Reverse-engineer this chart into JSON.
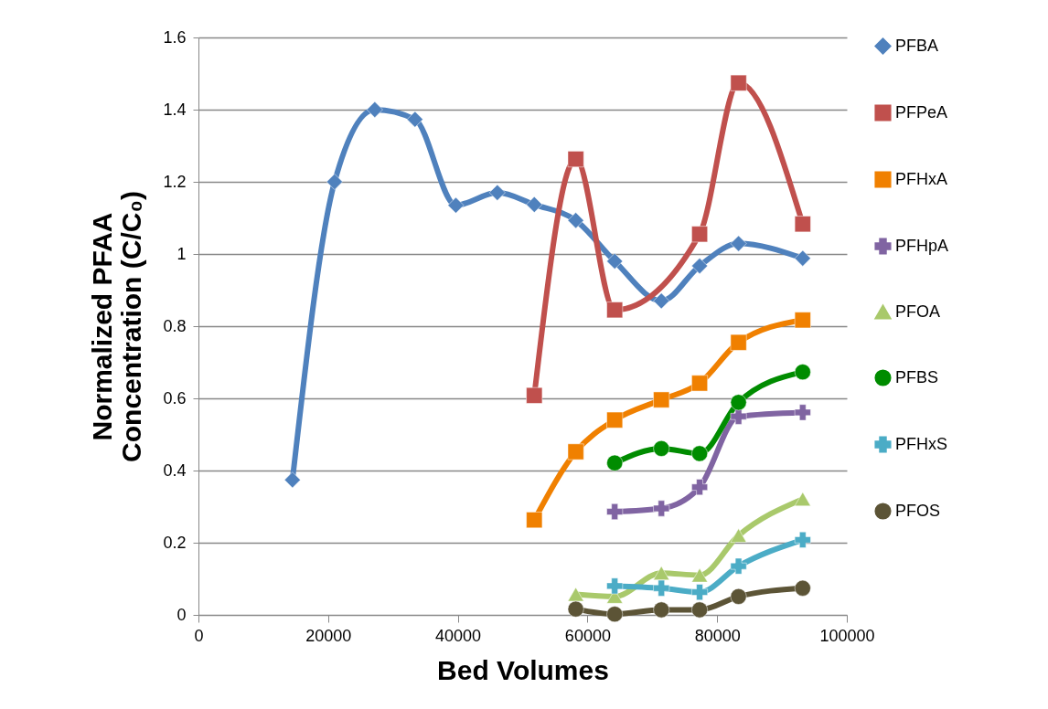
{
  "chart_data": {
    "type": "line",
    "xlabel": "Bed Volumes",
    "ylabel": "Normalized PFAA Concentration (C/C₀)",
    "xlim": [
      0,
      100000
    ],
    "xticks": [
      0,
      20000,
      40000,
      60000,
      80000,
      100000
    ],
    "ylim": [
      0,
      1.6
    ],
    "yticks": [
      0,
      0.2,
      0.4,
      0.6,
      0.8,
      1,
      1.2,
      1.4,
      1.6
    ],
    "grid": "y",
    "legend": "right",
    "series": [
      {
        "name": "PFBA",
        "color": "#4f81bd",
        "marker": "diamond",
        "x": [
          14500,
          21000,
          27200,
          33400,
          39700,
          46100,
          51800,
          58200,
          64200,
          71400,
          77300,
          83300,
          93200
        ],
        "values": [
          0.374,
          1.2,
          1.4,
          1.373,
          1.135,
          1.17,
          1.137,
          1.093,
          0.98,
          0.87,
          0.967,
          1.029,
          0.988
        ]
      },
      {
        "name": "PFPeA",
        "color": "#c0504d",
        "marker": "square",
        "x": [
          51800,
          58200,
          64200,
          77300,
          83300,
          93200
        ],
        "values": [
          0.608,
          1.263,
          0.845,
          1.055,
          1.474,
          1.083
        ]
      },
      {
        "name": "PFHxA",
        "color": "#f08000",
        "marker": "square",
        "x": [
          51800,
          58200,
          64200,
          71400,
          77300,
          83300,
          93200
        ],
        "values": [
          0.263,
          0.452,
          0.54,
          0.596,
          0.642,
          0.755,
          0.817
        ]
      },
      {
        "name": "PFHpA",
        "color": "#8064a2",
        "marker": "cross",
        "x": [
          64200,
          71400,
          77300,
          83300,
          93200
        ],
        "values": [
          0.286,
          0.295,
          0.354,
          0.55,
          0.561
        ]
      },
      {
        "name": "PFOA",
        "color": "#a9c96b",
        "marker": "triangle",
        "x": [
          58200,
          64200,
          71400,
          77300,
          83300,
          93200
        ],
        "values": [
          0.057,
          0.051,
          0.116,
          0.11,
          0.22,
          0.321
        ]
      },
      {
        "name": "PFBS",
        "color": "#008c00",
        "marker": "circle",
        "x": [
          64200,
          71400,
          77300,
          83300,
          93200
        ],
        "values": [
          0.421,
          0.461,
          0.447,
          0.589,
          0.673
        ]
      },
      {
        "name": "PFHxS",
        "color": "#4bacc6",
        "marker": "cross",
        "x": [
          64200,
          71400,
          77300,
          83300,
          93200
        ],
        "values": [
          0.08,
          0.074,
          0.063,
          0.135,
          0.208
        ]
      },
      {
        "name": "PFOS",
        "color": "#5c5436",
        "marker": "circle",
        "x": [
          58200,
          64200,
          71400,
          77300,
          83300,
          93200
        ],
        "values": [
          0.016,
          0.002,
          0.014,
          0.014,
          0.051,
          0.074
        ]
      }
    ]
  }
}
